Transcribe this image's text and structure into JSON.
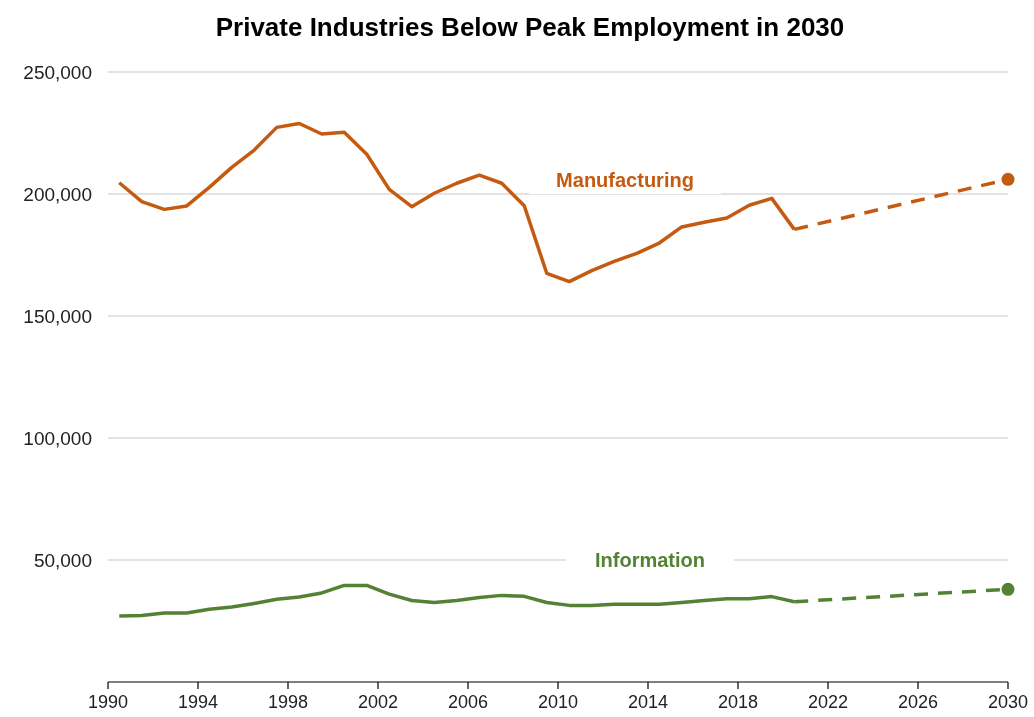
{
  "chart_data": {
    "type": "line",
    "title": "Private Industries Below Peak Employment in 2030",
    "xlim": [
      1990,
      2030
    ],
    "xticks": [
      1990,
      1994,
      1998,
      2002,
      2006,
      2010,
      2014,
      2018,
      2022,
      2026,
      2030
    ],
    "ylim": [
      0,
      250000
    ],
    "yticks": [
      {
        "value": 50000,
        "label": "50,000"
      },
      {
        "value": 100000,
        "label": "100,000"
      },
      {
        "value": 150000,
        "label": "150,000"
      },
      {
        "value": 200000,
        "label": "200,000"
      },
      {
        "value": 250000,
        "label": "250,000"
      }
    ],
    "grid": "y",
    "series": [
      {
        "name": "Manufacturing",
        "color": "#c55a11",
        "line_style": "solid",
        "x": [
          1990.5,
          1991.5,
          1992.5,
          1993.5,
          1994.5,
          1995.5,
          1996.5,
          1997.5,
          1998.5,
          1999.5,
          2000.5,
          2001.5,
          2002.5,
          2003.5,
          2004.5,
          2005.5,
          2006.5,
          2007.5,
          2008.5,
          2009.5,
          2010.5,
          2011.5,
          2012.5,
          2013.5,
          2014.5,
          2015.5,
          2016.5,
          2017.5,
          2018.5,
          2019.5,
          2020.5
        ],
        "values": [
          204600,
          196900,
          193700,
          195100,
          202700,
          210900,
          218000,
          227300,
          228900,
          224600,
          225300,
          216300,
          201900,
          194800,
          200300,
          204400,
          207700,
          204400,
          195200,
          167500,
          164100,
          168600,
          172400,
          175700,
          179900,
          186500,
          188400,
          190200,
          195400,
          198200,
          185500
        ]
      },
      {
        "type": "line",
        "color": "#c55a11",
        "line_style": "dashed",
        "x": [
          2020.5,
          2030
        ],
        "values": [
          185500,
          206000
        ]
      },
      {
        "type": "scatter",
        "color": "#c55a11",
        "marker": "circle",
        "x": [
          2030
        ],
        "values": [
          206000
        ]
      },
      {
        "name": "Information",
        "color": "#548235",
        "line_style": "solid",
        "x": [
          1990.5,
          1991.5,
          1992.5,
          1993.5,
          1994.5,
          1995.5,
          1996.5,
          1997.5,
          1998.5,
          1999.5,
          2000.5,
          2001.5,
          2002.5,
          2003.5,
          2004.5,
          2005.5,
          2006.5,
          2007.5,
          2008.5,
          2009.5,
          2010.5,
          2011.5,
          2012.5,
          2013.5,
          2014.5,
          2015.5,
          2016.5,
          2017.5,
          2018.5,
          2019.5,
          2020.5
        ],
        "values": [
          27100,
          27300,
          28300,
          28300,
          29800,
          30700,
          32200,
          33900,
          34800,
          36500,
          39600,
          39600,
          36000,
          33400,
          32600,
          33400,
          34600,
          35500,
          35100,
          32600,
          31400,
          31400,
          31900,
          31900,
          31900,
          32600,
          33400,
          34100,
          34100,
          35000,
          32900
        ]
      },
      {
        "type": "line",
        "color": "#548235",
        "line_style": "dashed",
        "x": [
          2020.5,
          2030
        ],
        "values": [
          32900,
          38000
        ]
      },
      {
        "type": "scatter",
        "color": "#548235",
        "marker": "circle",
        "x": [
          2030
        ],
        "values": [
          38000
        ]
      }
    ]
  }
}
